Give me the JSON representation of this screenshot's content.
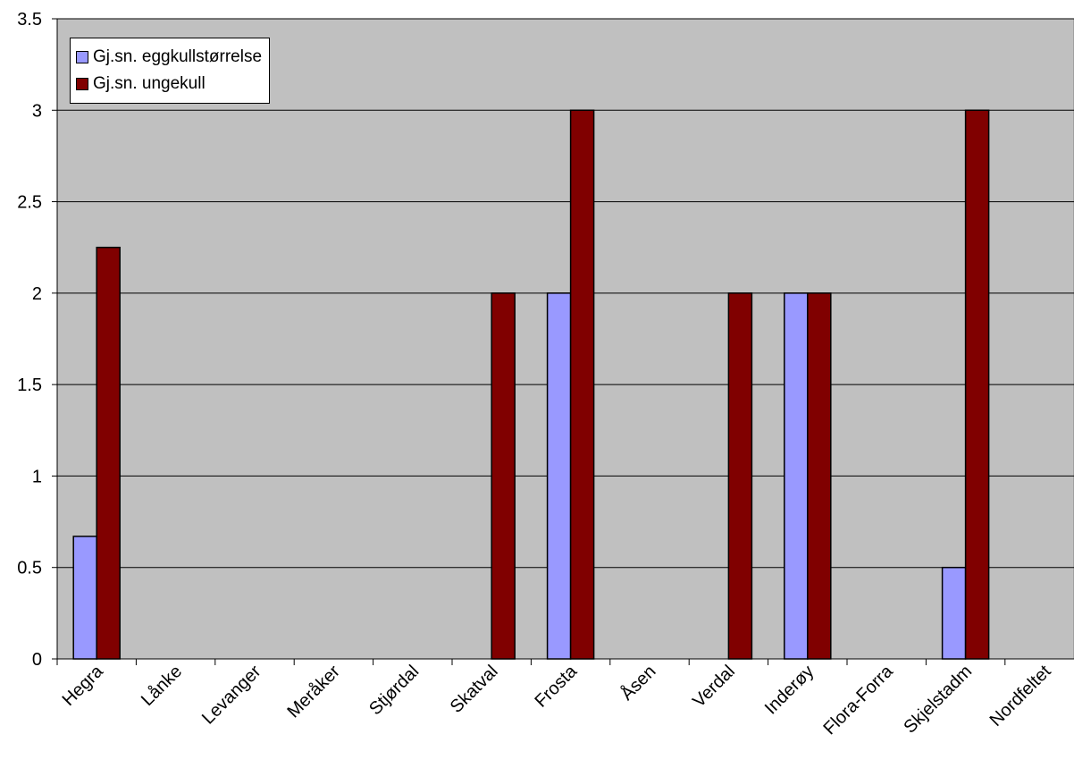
{
  "chart_data": {
    "type": "bar",
    "categories": [
      "Hegra",
      "Lånke",
      "Levanger",
      "Meråker",
      "Stjørdal",
      "Skatval",
      "Frosta",
      "Åsen",
      "Verdal",
      "Inderøy",
      "Flora-Forra",
      "Skjelstadm",
      "Nordfeltet"
    ],
    "series": [
      {
        "name": "Gj.sn. eggkullstørrelse",
        "color": "#9999ff",
        "values": [
          0.67,
          0,
          0,
          0,
          0,
          0,
          2,
          0,
          0,
          2,
          0,
          0.5,
          0
        ]
      },
      {
        "name": "Gj.sn. ungekull",
        "color": "#800000",
        "values": [
          2.25,
          0,
          0,
          0,
          0,
          2,
          3,
          0,
          2,
          2,
          0,
          3,
          0
        ]
      }
    ],
    "ylim": [
      0,
      3.5
    ],
    "yticks": [
      "0",
      "0.5",
      "1",
      "1.5",
      "2",
      "2.5",
      "3",
      "3.5"
    ],
    "grid": true,
    "legend_position": "top-left",
    "plot_background": "#c0c0c0"
  }
}
